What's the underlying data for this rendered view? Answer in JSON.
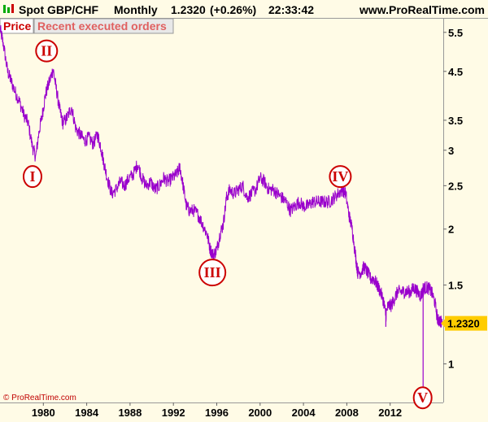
{
  "header": {
    "symbol": "Spot GBP/CHF",
    "interval": "Monthly",
    "last_price": "1.2320",
    "change": "(+0.26%)",
    "time": "22:33:42",
    "website": "www.ProRealTime.com"
  },
  "tabs": {
    "price_label": "Price",
    "orders_label": "Recent executed orders"
  },
  "copyright": "© ProRealTime.com",
  "colors": {
    "background": "#fffbe6",
    "series": "#9900cc",
    "wave_label": "#cc0000",
    "last_price_box": "#ffcc00",
    "tab_price_bg": "#ffffff",
    "tab_orders_bg": "#e8e8e8"
  },
  "chart_data": {
    "type": "line",
    "scale": "log",
    "ylim": [
      0.82,
      5.9
    ],
    "xlim": [
      1976.0,
      2016.9
    ],
    "y_ticks": [
      {
        "value": 5.5,
        "label": "5.5"
      },
      {
        "value": 4.5,
        "label": "4.5"
      },
      {
        "value": 3.5,
        "label": "3.5"
      },
      {
        "value": 3,
        "label": "3"
      },
      {
        "value": 2.5,
        "label": "2.5"
      },
      {
        "value": 2,
        "label": "2"
      },
      {
        "value": 1.5,
        "label": "1.5"
      },
      {
        "value": 1,
        "label": "1"
      }
    ],
    "x_ticks": [
      {
        "value": 1980,
        "label": "1980"
      },
      {
        "value": 1984,
        "label": "1984"
      },
      {
        "value": 1988,
        "label": "1988"
      },
      {
        "value": 1992,
        "label": "1992"
      },
      {
        "value": 1996,
        "label": "1996"
      },
      {
        "value": 2000,
        "label": "2000"
      },
      {
        "value": 2004,
        "label": "2004"
      },
      {
        "value": 2008,
        "label": "2008"
      },
      {
        "value": 2012,
        "label": "2012"
      }
    ],
    "last_value": {
      "value": 1.232,
      "label": "1.2320"
    },
    "series": [
      {
        "points": [
          [
            1976.0,
            5.6
          ],
          [
            1976.3,
            5.2
          ],
          [
            1976.7,
            4.5
          ],
          [
            1977.0,
            4.3
          ],
          [
            1977.4,
            4.05
          ],
          [
            1977.8,
            3.85
          ],
          [
            1978.2,
            3.6
          ],
          [
            1978.6,
            3.45
          ],
          [
            1979.0,
            3.05
          ],
          [
            1979.3,
            2.9
          ],
          [
            1979.6,
            3.3
          ],
          [
            1979.9,
            3.6
          ],
          [
            1980.2,
            4.0
          ],
          [
            1980.6,
            4.3
          ],
          [
            1980.9,
            4.55
          ],
          [
            1981.2,
            4.1
          ],
          [
            1981.5,
            3.7
          ],
          [
            1981.8,
            3.45
          ],
          [
            1982.2,
            3.55
          ],
          [
            1982.6,
            3.75
          ],
          [
            1983.0,
            3.35
          ],
          [
            1983.4,
            3.25
          ],
          [
            1983.8,
            3.15
          ],
          [
            1984.2,
            3.2
          ],
          [
            1984.6,
            3.1
          ],
          [
            1985.0,
            3.25
          ],
          [
            1985.3,
            3.05
          ],
          [
            1985.6,
            2.8
          ],
          [
            1985.9,
            2.6
          ],
          [
            1986.3,
            2.4
          ],
          [
            1986.7,
            2.45
          ],
          [
            1987.1,
            2.55
          ],
          [
            1987.5,
            2.5
          ],
          [
            1987.9,
            2.6
          ],
          [
            1988.3,
            2.65
          ],
          [
            1988.7,
            2.8
          ],
          [
            1989.1,
            2.6
          ],
          [
            1989.5,
            2.5
          ],
          [
            1989.9,
            2.55
          ],
          [
            1990.3,
            2.45
          ],
          [
            1990.7,
            2.5
          ],
          [
            1991.1,
            2.6
          ],
          [
            1991.5,
            2.55
          ],
          [
            1991.9,
            2.6
          ],
          [
            1992.3,
            2.65
          ],
          [
            1992.6,
            2.75
          ],
          [
            1992.9,
            2.5
          ],
          [
            1993.2,
            2.25
          ],
          [
            1993.5,
            2.2
          ],
          [
            1993.9,
            2.2
          ],
          [
            1994.3,
            2.15
          ],
          [
            1994.7,
            2.05
          ],
          [
            1995.1,
            1.95
          ],
          [
            1995.4,
            1.8
          ],
          [
            1995.7,
            1.75
          ],
          [
            1996.0,
            1.8
          ],
          [
            1996.3,
            1.95
          ],
          [
            1996.6,
            2.05
          ],
          [
            1996.9,
            2.35
          ],
          [
            1997.2,
            2.45
          ],
          [
            1997.6,
            2.4
          ],
          [
            1998.0,
            2.45
          ],
          [
            1998.4,
            2.5
          ],
          [
            1998.8,
            2.35
          ],
          [
            1999.2,
            2.4
          ],
          [
            1999.6,
            2.45
          ],
          [
            2000.0,
            2.6
          ],
          [
            2000.4,
            2.55
          ],
          [
            2000.8,
            2.45
          ],
          [
            2001.2,
            2.45
          ],
          [
            2001.6,
            2.4
          ],
          [
            2002.0,
            2.35
          ],
          [
            2002.4,
            2.3
          ],
          [
            2002.8,
            2.2
          ],
          [
            2003.2,
            2.25
          ],
          [
            2003.6,
            2.3
          ],
          [
            2004.0,
            2.25
          ],
          [
            2004.4,
            2.25
          ],
          [
            2004.8,
            2.3
          ],
          [
            2005.2,
            2.3
          ],
          [
            2005.6,
            2.3
          ],
          [
            2006.0,
            2.3
          ],
          [
            2006.4,
            2.3
          ],
          [
            2006.8,
            2.35
          ],
          [
            2007.2,
            2.4
          ],
          [
            2007.6,
            2.45
          ],
          [
            2007.9,
            2.4
          ],
          [
            2008.2,
            2.15
          ],
          [
            2008.5,
            2.0
          ],
          [
            2008.8,
            1.75
          ],
          [
            2009.0,
            1.6
          ],
          [
            2009.3,
            1.6
          ],
          [
            2009.6,
            1.65
          ],
          [
            2009.9,
            1.6
          ],
          [
            2010.2,
            1.55
          ],
          [
            2010.5,
            1.55
          ],
          [
            2010.8,
            1.5
          ],
          [
            2011.1,
            1.45
          ],
          [
            2011.4,
            1.38
          ],
          [
            2011.6,
            1.28
          ],
          [
            2011.8,
            1.35
          ],
          [
            2012.1,
            1.35
          ],
          [
            2012.4,
            1.4
          ],
          [
            2012.7,
            1.45
          ],
          [
            2013.0,
            1.45
          ],
          [
            2013.3,
            1.45
          ],
          [
            2013.6,
            1.45
          ],
          [
            2013.9,
            1.45
          ],
          [
            2014.2,
            1.48
          ],
          [
            2014.5,
            1.45
          ],
          [
            2014.8,
            1.42
          ],
          [
            2015.0,
            1.45
          ],
          [
            2015.2,
            1.48
          ],
          [
            2015.5,
            1.48
          ],
          [
            2015.8,
            1.45
          ],
          [
            2016.1,
            1.38
          ],
          [
            2016.4,
            1.25
          ],
          [
            2016.6,
            1.25
          ],
          [
            2016.8,
            1.23
          ]
        ],
        "spikes": [
          {
            "x": 2011.6,
            "low": 1.21
          },
          {
            "x": 2015.04,
            "low": 0.89
          }
        ]
      }
    ],
    "annotations": [
      {
        "label": "I",
        "x": 1979.0,
        "y": 2.62
      },
      {
        "label": "II",
        "x": 1980.3,
        "y": 5.0
      },
      {
        "label": "III",
        "x": 1995.6,
        "y": 1.6
      },
      {
        "label": "IV",
        "x": 2007.4,
        "y": 2.62
      },
      {
        "label": "V",
        "x": 2015.0,
        "y": 0.84
      }
    ]
  }
}
